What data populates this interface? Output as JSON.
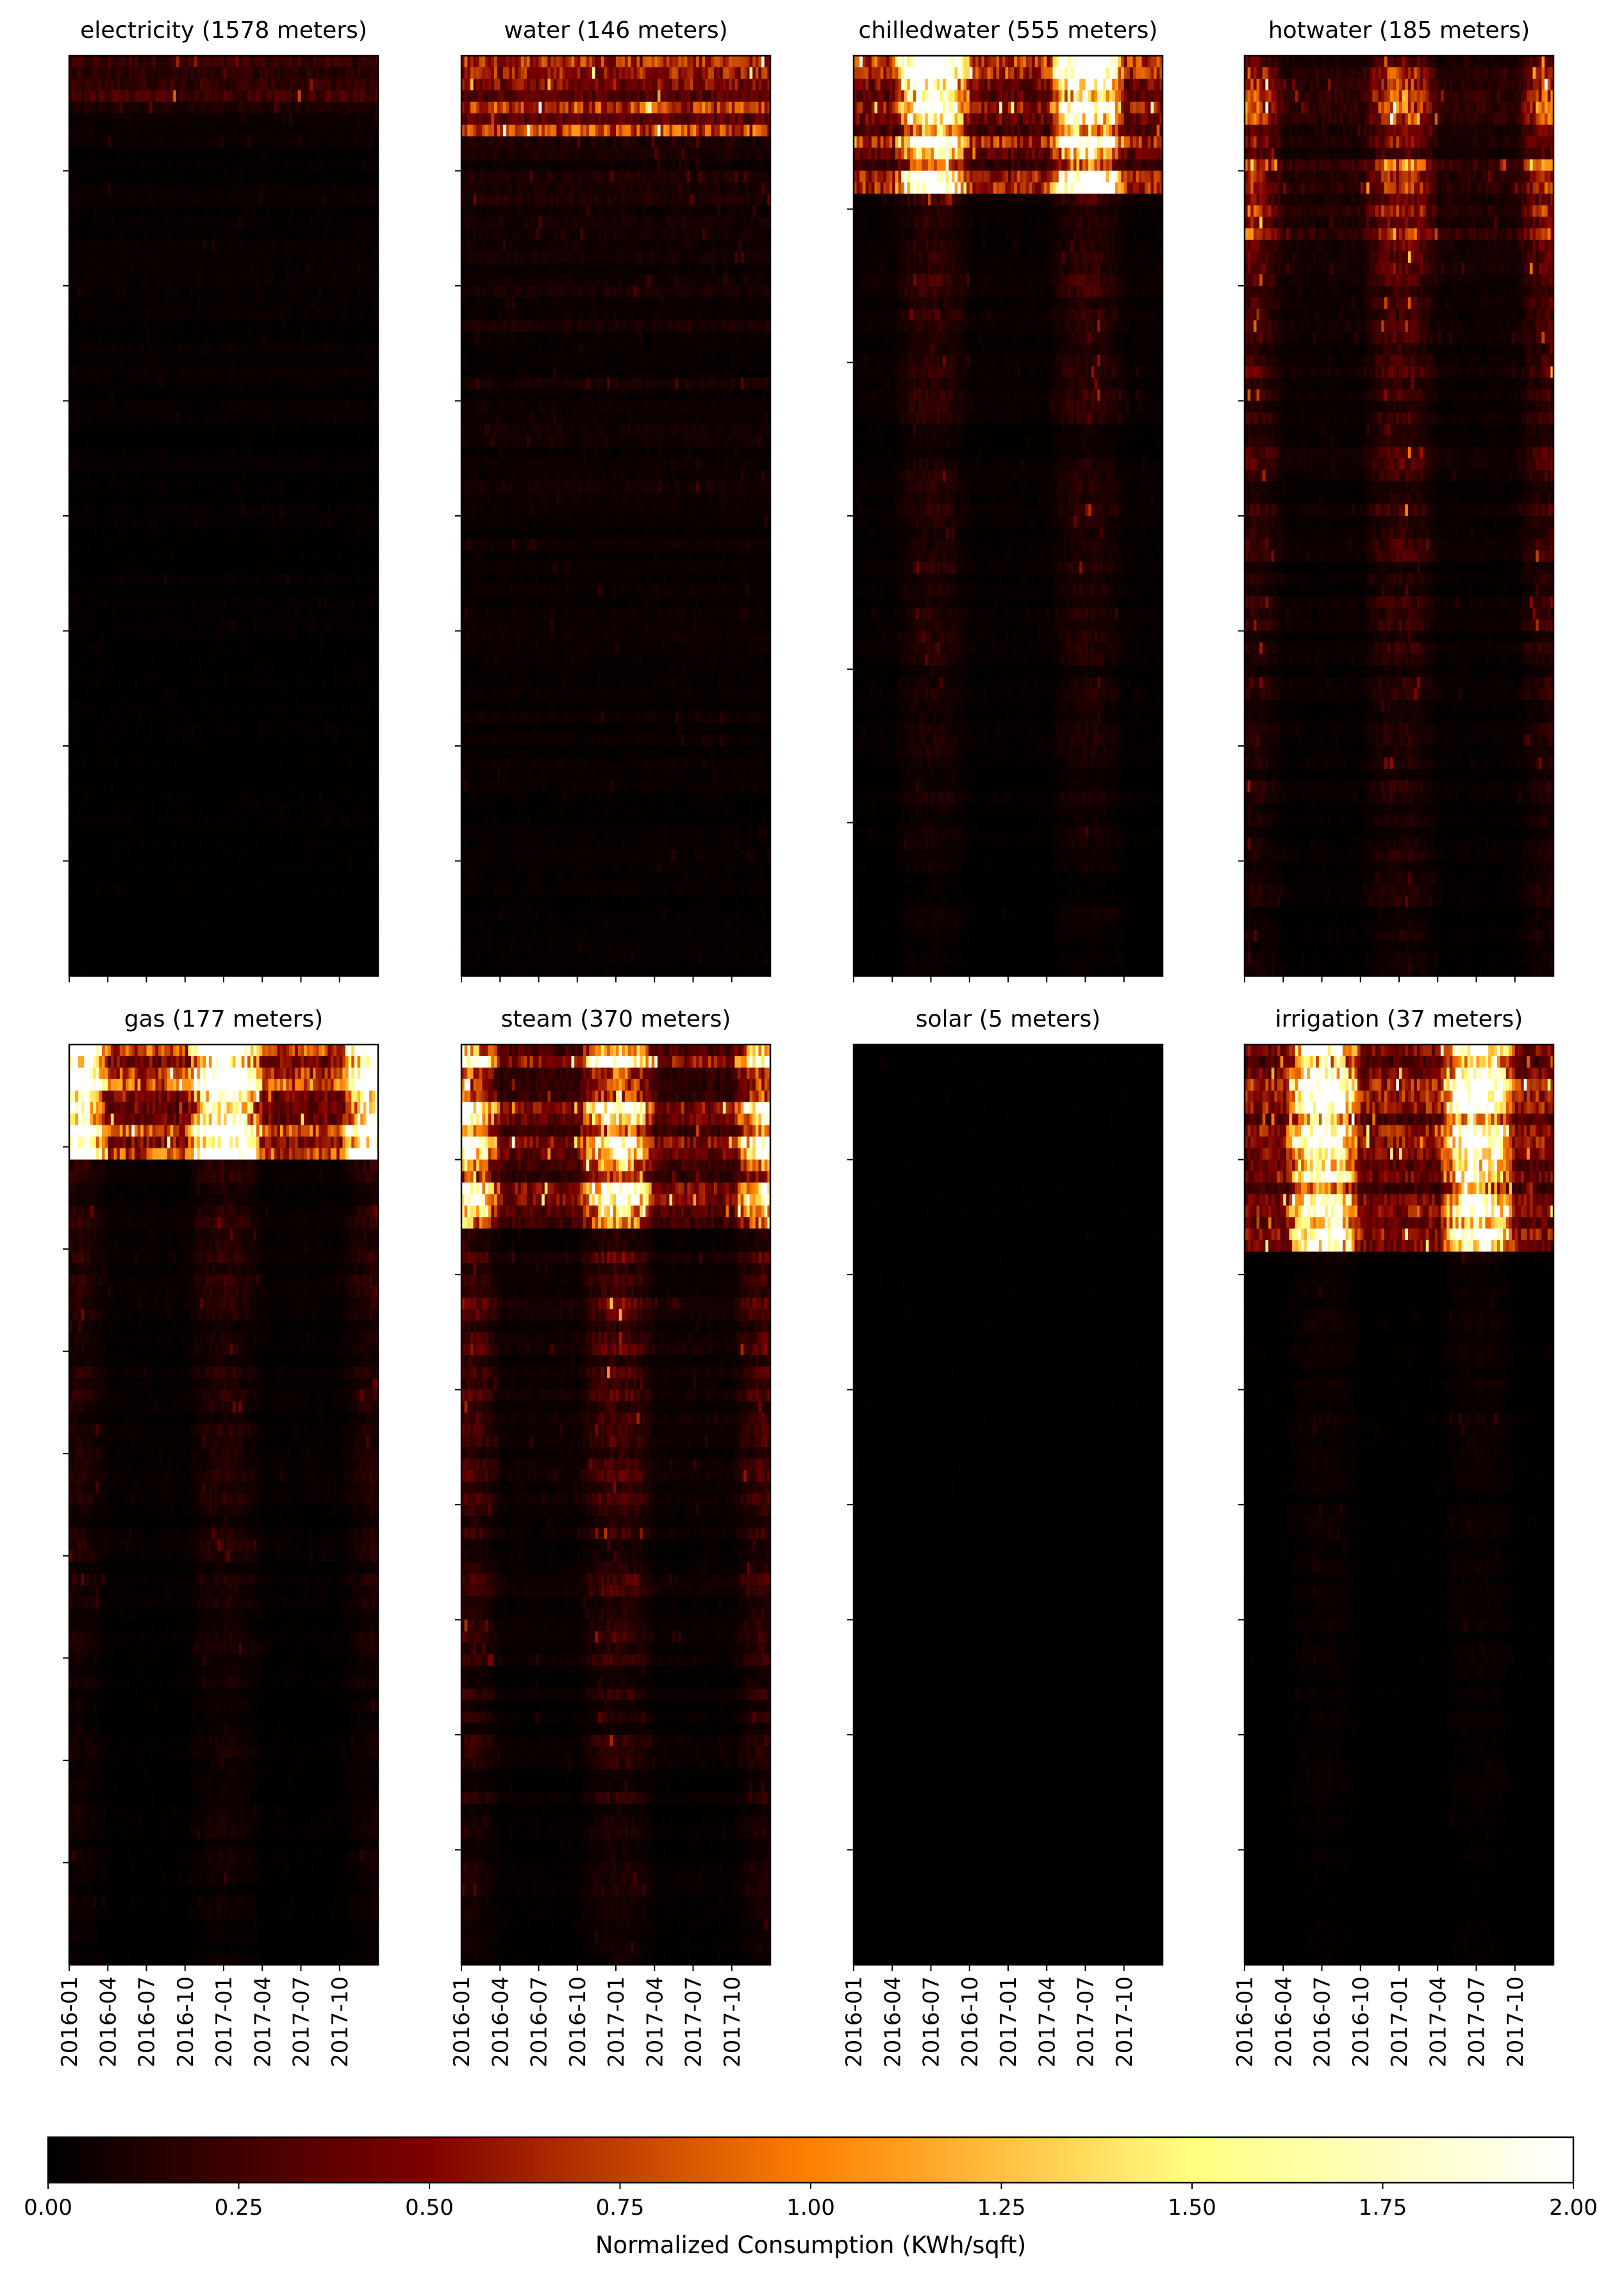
{
  "chart_data": {
    "type": "heatmap",
    "colorbar": {
      "label": "Normalized Consumption (KWh/sqft)",
      "range": [
        0,
        2
      ],
      "ticks": [
        "0.00",
        "0.25",
        "0.50",
        "0.75",
        "1.00",
        "1.25",
        "1.50",
        "1.75",
        "2.00"
      ],
      "colormap": "afmhot",
      "orientation": "horizontal",
      "placement": "bottom"
    },
    "x_tick_labels": [
      "2016-01",
      "2016-04",
      "2016-07",
      "2016-10",
      "2017-01",
      "2017-04",
      "2017-07",
      "2017-10"
    ],
    "x_range": [
      "2016-01-01",
      "2017-12-31"
    ],
    "panels": [
      {
        "title": "electricity (1578 meters)",
        "meter": "electricity",
        "meters": 1578,
        "y_ticks": 7,
        "intensity": 0.04,
        "top_intensity": 0.2,
        "top_fraction": 0.06,
        "seasonality": "none"
      },
      {
        "title": "water (146 meters)",
        "meter": "water",
        "meters": 146,
        "y_ticks": 7,
        "intensity": 0.1,
        "top_intensity": 0.6,
        "top_fraction": 0.08,
        "seasonality": "none"
      },
      {
        "title": "chilledwater (555 meters)",
        "meter": "chilledwater",
        "meters": 555,
        "y_ticks": 5,
        "intensity": 0.14,
        "top_intensity": 1.5,
        "top_fraction": 0.15,
        "seasonality": "summer"
      },
      {
        "title": "hotwater (185 meters)",
        "meter": "hotwater",
        "meters": 185,
        "y_ticks": 7,
        "intensity": 0.22,
        "top_intensity": 0.5,
        "top_fraction": 0.2,
        "seasonality": "winter"
      },
      {
        "title": "gas (177 meters)",
        "meter": "gas",
        "meters": 177,
        "y_ticks": 8,
        "intensity": 0.12,
        "top_intensity": 1.9,
        "top_fraction": 0.12,
        "seasonality": "winter"
      },
      {
        "title": "steam (370 meters)",
        "meter": "steam",
        "meters": 370,
        "y_ticks": 7,
        "intensity": 0.25,
        "top_intensity": 1.2,
        "top_fraction": 0.2,
        "seasonality": "winter"
      },
      {
        "title": "solar (5 meters)",
        "meter": "solar",
        "meters": 5,
        "y_ticks": 7,
        "intensity": 0.01,
        "top_intensity": 0.02,
        "top_fraction": 0.0,
        "seasonality": "none"
      },
      {
        "title": "irrigation (37 meters)",
        "meter": "irrigation",
        "meters": 37,
        "y_ticks": 7,
        "intensity": 0.05,
        "top_intensity": 1.4,
        "top_fraction": 0.22,
        "seasonality": "summer"
      }
    ]
  }
}
